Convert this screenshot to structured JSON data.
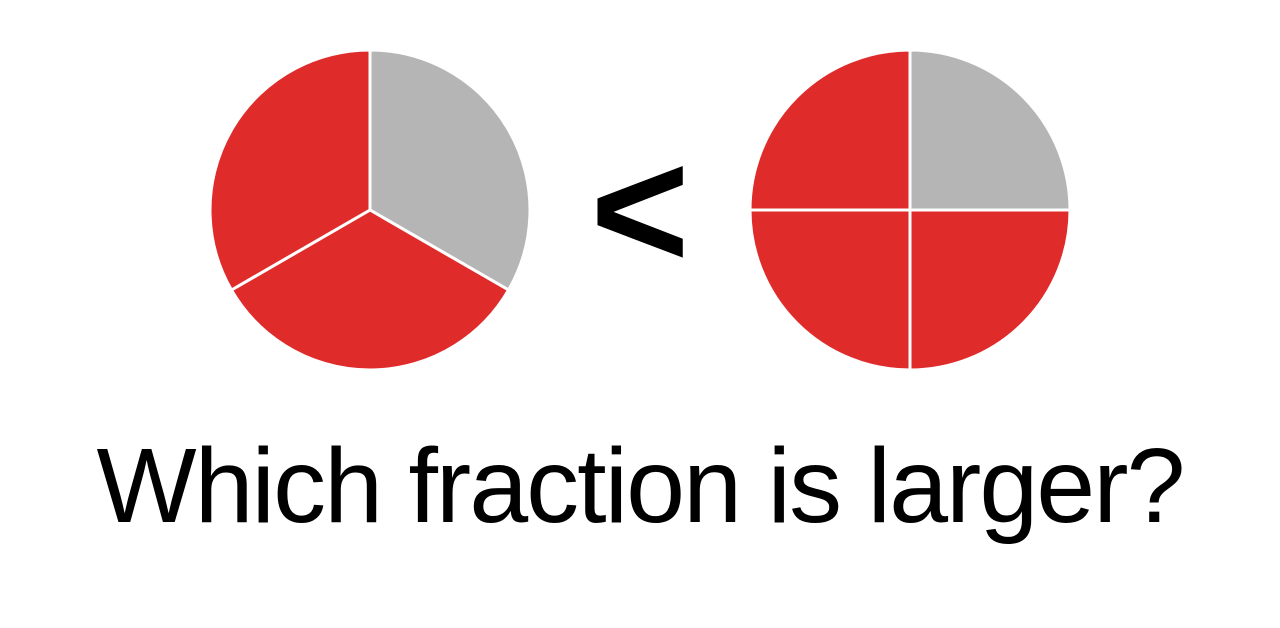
{
  "left_pie": {
    "type": "pie",
    "slices": 3,
    "filled": 2,
    "fill_color": "#e02b2b",
    "empty_color": "#b5b5b5",
    "divider_color": "#ffffff",
    "divider_width": 3,
    "start_angle_deg": -90,
    "radius": 160,
    "filled_indices": [
      1,
      2
    ]
  },
  "right_pie": {
    "type": "pie",
    "slices": 4,
    "filled": 3,
    "fill_color": "#e02b2b",
    "empty_color": "#b5b5b5",
    "divider_color": "#ffffff",
    "divider_width": 3,
    "start_angle_deg": -90,
    "radius": 160,
    "filled_indices": [
      1,
      2,
      3
    ]
  },
  "comparison_symbol": "<",
  "question_text": "Which fraction is larger?",
  "background_color": "#ffffff",
  "text_color": "#000000",
  "question_fontsize": 106,
  "symbol_fontsize": 170
}
